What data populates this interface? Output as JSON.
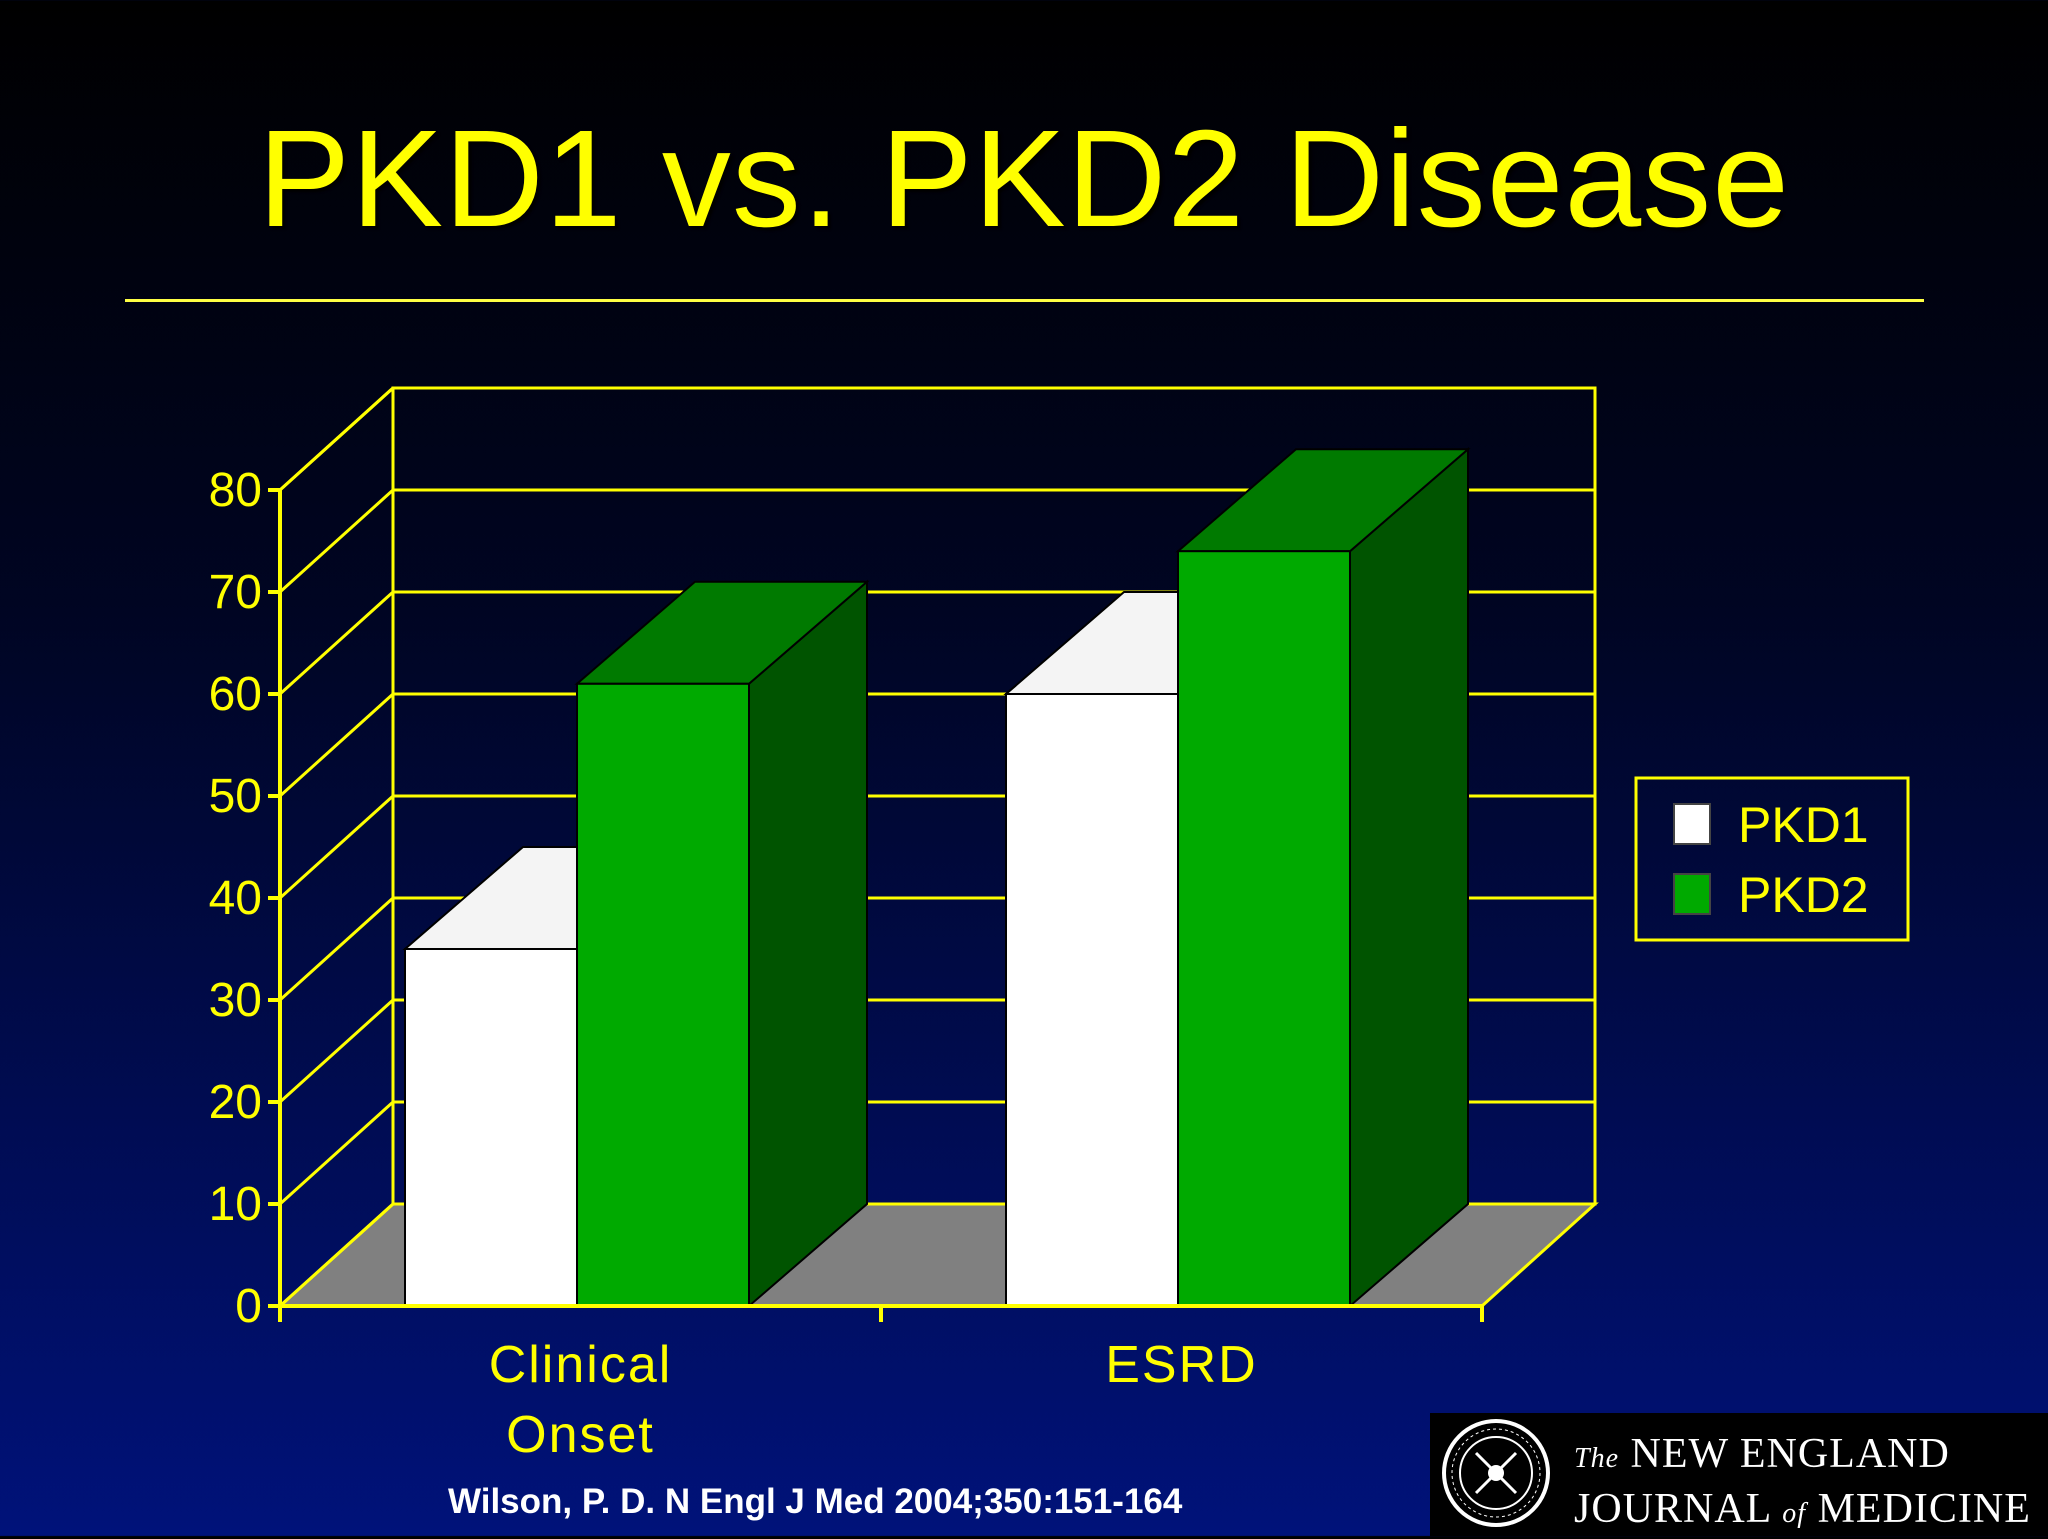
{
  "title": "PKD1 vs. PKD2 Disease",
  "citation": "Wilson, P. D. N Engl J Med 2004;350:151-164",
  "logo": {
    "the": "The",
    "line1": "NEW ENGLAND",
    "journal": "JOURNAL",
    "of": "of",
    "medicine": "MEDICINE"
  },
  "chart_data": {
    "type": "bar",
    "categories": [
      "Clinical\nOnset",
      "ESRD"
    ],
    "series": [
      {
        "name": "PKD1",
        "values": [
          35,
          60
        ],
        "color": "#ffffff"
      },
      {
        "name": "PKD2",
        "values": [
          61,
          74
        ],
        "color": "#00aa00"
      }
    ],
    "ylim": [
      0,
      80
    ],
    "yticks": [
      0,
      10,
      20,
      30,
      40,
      50,
      60,
      70,
      80
    ],
    "grid": true,
    "legend_position": "right",
    "colors": {
      "axis": "#ffff00",
      "floor": "#808080",
      "text": "#ffff00"
    }
  }
}
